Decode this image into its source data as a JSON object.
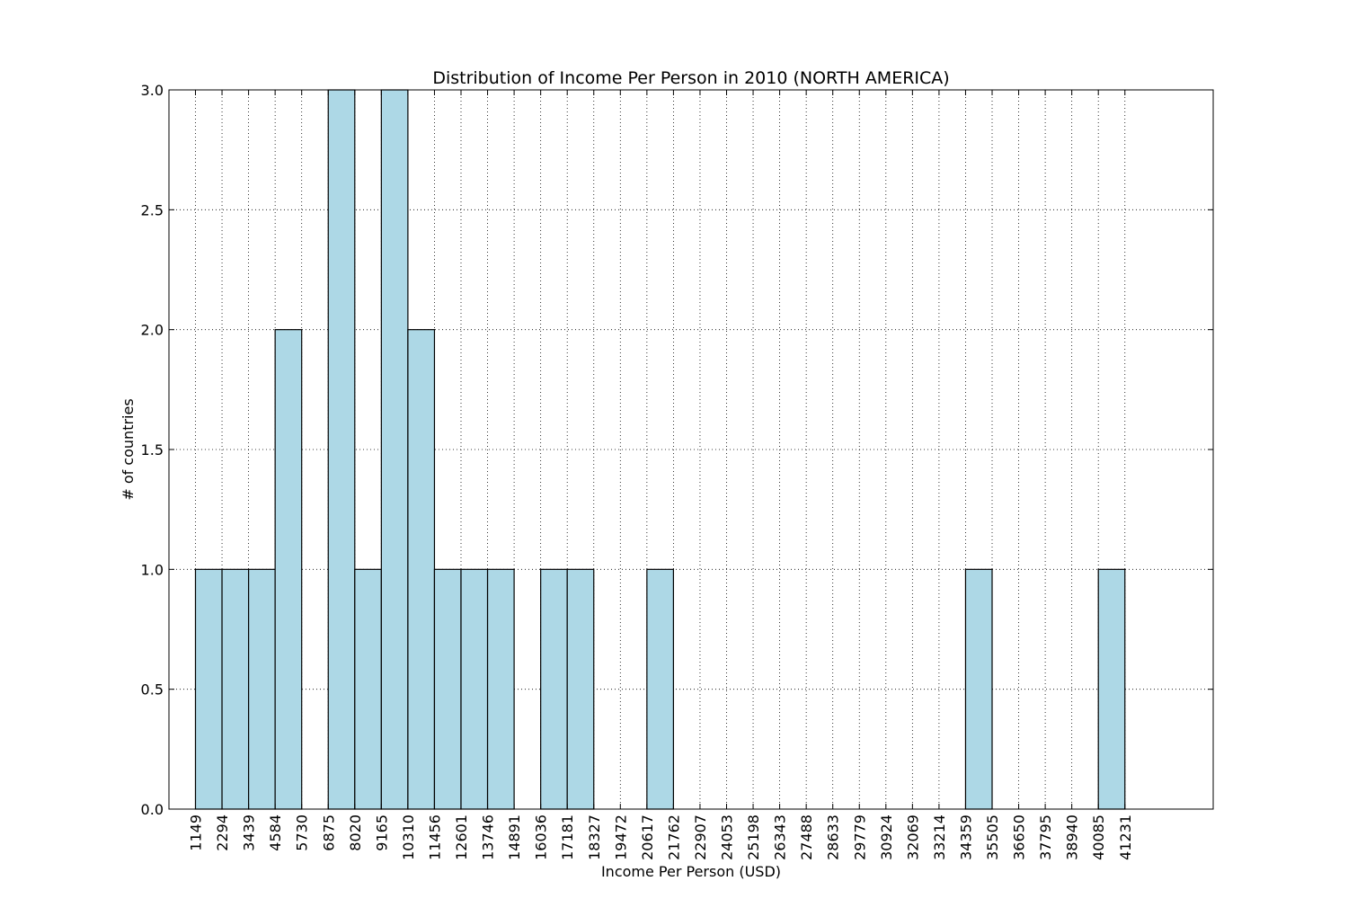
{
  "chart_data": {
    "type": "bar",
    "title": "Distribution of Income Per Person in 2010 (NORTH AMERICA)",
    "xlabel": "Income Per Person (USD)",
    "ylabel": "# of countries",
    "ylim": [
      0,
      3
    ],
    "y_ticks": [
      "0.0",
      "0.5",
      "1.0",
      "1.5",
      "2.0",
      "2.5",
      "3.0"
    ],
    "grid": true,
    "x_tick_labels": [
      "1149",
      "2294",
      "3439",
      "4584",
      "5730",
      "6875",
      "8020",
      "9165",
      "10310",
      "11456",
      "12601",
      "13746",
      "14891",
      "16036",
      "17181",
      "18327",
      "19472",
      "20617",
      "21762",
      "22907",
      "24053",
      "25198",
      "26343",
      "27488",
      "28633",
      "29779",
      "30924",
      "32069",
      "33214",
      "34359",
      "35505",
      "36650",
      "37795",
      "38940",
      "40085",
      "41231"
    ],
    "bins": [
      {
        "start": "1149",
        "count": 1
      },
      {
        "start": "2294",
        "count": 1
      },
      {
        "start": "3439",
        "count": 1
      },
      {
        "start": "4584",
        "count": 2
      },
      {
        "start": "5730",
        "count": 0
      },
      {
        "start": "6875",
        "count": 3
      },
      {
        "start": "8020",
        "count": 1
      },
      {
        "start": "9165",
        "count": 3
      },
      {
        "start": "10310",
        "count": 2
      },
      {
        "start": "11456",
        "count": 1
      },
      {
        "start": "12601",
        "count": 1
      },
      {
        "start": "13746",
        "count": 1
      },
      {
        "start": "14891",
        "count": 0
      },
      {
        "start": "16036",
        "count": 1
      },
      {
        "start": "17181",
        "count": 1
      },
      {
        "start": "18327",
        "count": 0
      },
      {
        "start": "19472",
        "count": 0
      },
      {
        "start": "20617",
        "count": 1
      },
      {
        "start": "21762",
        "count": 0
      },
      {
        "start": "22907",
        "count": 0
      },
      {
        "start": "24053",
        "count": 0
      },
      {
        "start": "25198",
        "count": 0
      },
      {
        "start": "26343",
        "count": 0
      },
      {
        "start": "27488",
        "count": 0
      },
      {
        "start": "28633",
        "count": 0
      },
      {
        "start": "29779",
        "count": 0
      },
      {
        "start": "30924",
        "count": 0
      },
      {
        "start": "32069",
        "count": 0
      },
      {
        "start": "33214",
        "count": 0
      },
      {
        "start": "34359",
        "count": 1
      },
      {
        "start": "35505",
        "count": 0
      },
      {
        "start": "36650",
        "count": 0
      },
      {
        "start": "37795",
        "count": 0
      },
      {
        "start": "38940",
        "count": 0
      },
      {
        "start": "40085",
        "count": 1
      }
    ],
    "bar_color": "#add8e6",
    "edge_color": "#000000"
  }
}
